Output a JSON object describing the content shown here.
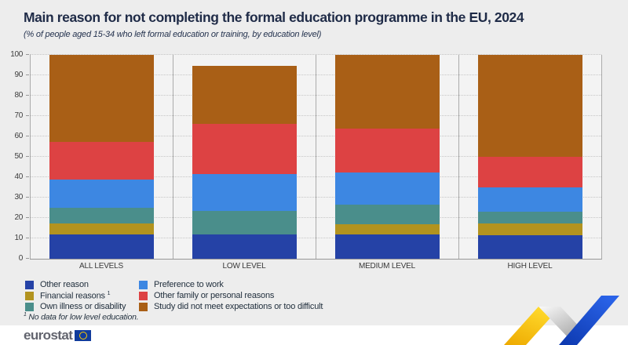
{
  "title": "Main reason for not completing the formal education programme in the EU, 2024",
  "subtitle": "(% of people aged 15-34 who left formal education or training, by education level)",
  "chart_data": {
    "type": "bar",
    "stacked": true,
    "categories": [
      "ALL LEVELS",
      "LOW LEVEL",
      "MEDIUM LEVEL",
      "HIGH LEVEL"
    ],
    "series": [
      {
        "name": "Other reason",
        "color": "#2542A6",
        "values": [
          12,
          12,
          12,
          11.5
        ]
      },
      {
        "name": "Financial reasons",
        "color": "#B2931F",
        "values": [
          5.5,
          null,
          5,
          6
        ]
      },
      {
        "name": "Own illness or disability",
        "color": "#4A8E8B",
        "values": [
          7.5,
          11.5,
          9.5,
          5.5
        ]
      },
      {
        "name": "Preference to work",
        "color": "#3D87E2",
        "values": [
          14,
          18,
          16,
          12
        ]
      },
      {
        "name": "Other family or personal reasons",
        "color": "#DD4243",
        "values": [
          18.5,
          24.5,
          21.5,
          15
        ]
      },
      {
        "name": "Study did not meet expectations or too difficult",
        "color": "#A95F16",
        "values": [
          42.5,
          28.5,
          36,
          50
        ]
      }
    ],
    "ylim": [
      0,
      100
    ],
    "yticks": [
      0,
      10,
      20,
      30,
      40,
      50,
      60,
      70,
      80,
      90,
      100
    ],
    "grid": "horizontal-dotted",
    "legend_position": "bottom"
  },
  "legend": {
    "columns": [
      [
        {
          "label": "Other reason",
          "color": "#2542A6",
          "sup": ""
        },
        {
          "label": "Financial reasons",
          "color": "#B2931F",
          "sup": "1"
        },
        {
          "label": "Own illness or disability",
          "color": "#4A8E8B",
          "sup": ""
        }
      ],
      [
        {
          "label": "Preference to work",
          "color": "#3D87E2",
          "sup": ""
        },
        {
          "label": "Other family or personal reasons",
          "color": "#DD4243",
          "sup": ""
        },
        {
          "label": "Study did not meet expectations or too difficult",
          "color": "#A95F16",
          "sup": ""
        }
      ]
    ]
  },
  "footnote": {
    "marker": "1",
    "text": "No data for low level education."
  },
  "logo": {
    "text": "eurostat",
    "flag_blue": "#113C9C",
    "flag_yellow": "#FFCC00"
  },
  "swoosh_colors": {
    "yellow": "#F7C600",
    "gray": "#E3E3E3",
    "blue": "#1547C8"
  }
}
